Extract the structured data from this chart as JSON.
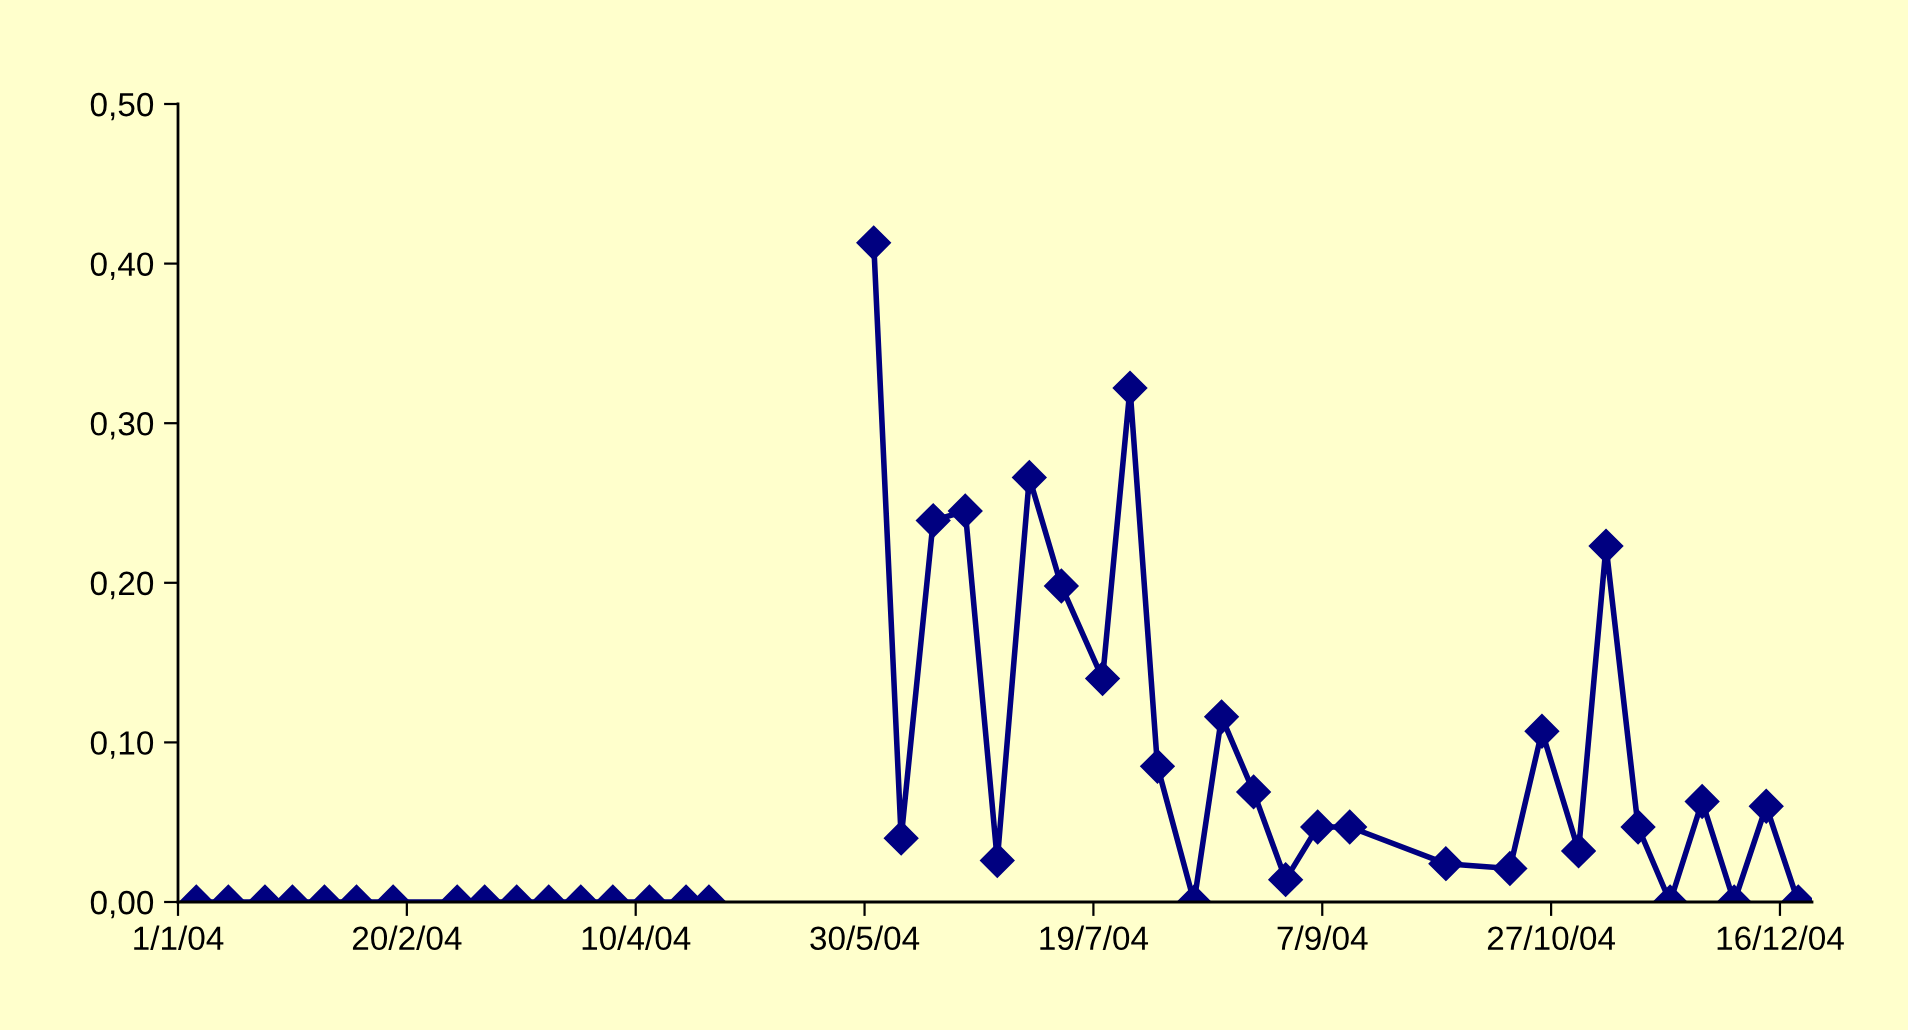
{
  "chart_data": {
    "type": "line",
    "x": [
      "2004-01-05",
      "2004-01-12",
      "2004-01-20",
      "2004-01-26",
      "2004-02-02",
      "2004-02-09",
      "2004-02-17",
      "2004-03-02",
      "2004-03-08",
      "2004-03-15",
      "2004-03-22",
      "2004-03-29",
      "2004-04-05",
      "2004-04-13",
      "2004-04-21",
      "2004-04-26",
      "2004-05-14",
      "2004-06-01",
      "2004-06-07",
      "2004-06-14",
      "2004-06-21",
      "2004-06-28",
      "2004-07-05",
      "2004-07-12",
      "2004-07-21",
      "2004-07-27",
      "2004-08-02",
      "2004-08-10",
      "2004-08-16",
      "2004-08-23",
      "2004-08-30",
      "2004-09-06",
      "2004-09-13",
      "2004-10-04",
      "2004-10-18",
      "2004-10-25",
      "2004-11-02",
      "2004-11-08",
      "2004-11-15",
      "2004-11-22",
      "2004-11-29",
      "2004-12-06",
      "2004-12-13",
      "2004-12-20"
    ],
    "series": [
      {
        "color": "#000080",
        "values": [
          0,
          0,
          0,
          0,
          0,
          0,
          0,
          0,
          0,
          0,
          0,
          0,
          0,
          0,
          0,
          0,
          null,
          0.413,
          0.04,
          0.239,
          0.245,
          0.026,
          0.266,
          0.198,
          0.14,
          0.322,
          0.085,
          0,
          0.116,
          0.069,
          0.014,
          0.047,
          0.047,
          0.024,
          0.021,
          0.107,
          0.032,
          0.223,
          0.047,
          0,
          0.063,
          0,
          0.06,
          0
        ]
      }
    ],
    "marker": "diamond",
    "line_style": "solid",
    "grid": false,
    "legend": false,
    "xlim": [
      "2004-01-01",
      "2004-12-23"
    ],
    "xticks": [
      {
        "value": "2004-01-01",
        "label": "1/1/04"
      },
      {
        "value": "2004-02-20",
        "label": "20/2/04"
      },
      {
        "value": "2004-04-10",
        "label": "10/4/04"
      },
      {
        "value": "2004-05-30",
        "label": "30/5/04"
      },
      {
        "value": "2004-07-19",
        "label": "19/7/04"
      },
      {
        "value": "2004-09-07",
        "label": "7/9/04"
      },
      {
        "value": "2004-10-27",
        "label": "27/10/04"
      },
      {
        "value": "2004-12-16",
        "label": "16/12/04"
      }
    ],
    "ylim": [
      0,
      0.5
    ],
    "yticks": [
      {
        "value": 0,
        "label": "0,00"
      },
      {
        "value": 0.1,
        "label": "0,10"
      },
      {
        "value": 0.2,
        "label": "0,20"
      },
      {
        "value": 0.3,
        "label": "0,30"
      },
      {
        "value": 0.4,
        "label": "0,40"
      },
      {
        "value": 0.5,
        "label": "0,50"
      }
    ]
  }
}
